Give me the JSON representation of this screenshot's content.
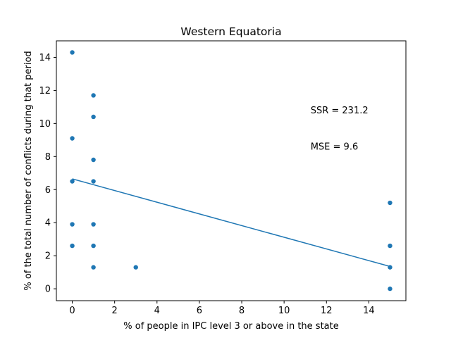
{
  "chart_data": {
    "type": "scatter",
    "title": "Western Equatoria",
    "xlabel": "% of people in IPC level 3 or above in the state",
    "ylabel": "% of the total number of conflicts during that period",
    "xlim": [
      -0.75,
      15.75
    ],
    "ylim": [
      -0.72,
      15.0
    ],
    "xticks": [
      0,
      2,
      4,
      6,
      8,
      10,
      12,
      14
    ],
    "yticks": [
      0,
      2,
      4,
      6,
      8,
      10,
      12,
      14
    ],
    "grid": false,
    "color": "#1f77b4",
    "points": [
      {
        "x": 0,
        "y": 14.3
      },
      {
        "x": 0,
        "y": 9.1
      },
      {
        "x": 0,
        "y": 6.5
      },
      {
        "x": 0,
        "y": 3.9
      },
      {
        "x": 0,
        "y": 2.6
      },
      {
        "x": 1,
        "y": 11.7
      },
      {
        "x": 1,
        "y": 10.4
      },
      {
        "x": 1,
        "y": 7.8
      },
      {
        "x": 1,
        "y": 6.5
      },
      {
        "x": 1,
        "y": 3.9
      },
      {
        "x": 1,
        "y": 2.6
      },
      {
        "x": 1,
        "y": 1.3
      },
      {
        "x": 3,
        "y": 1.3
      },
      {
        "x": 15,
        "y": 5.2
      },
      {
        "x": 15,
        "y": 2.6
      },
      {
        "x": 15,
        "y": 1.3
      },
      {
        "x": 15,
        "y": 0.0
      }
    ],
    "fit_line": {
      "x": [
        0,
        15
      ],
      "y": [
        6.65,
        1.35
      ]
    },
    "annotations": [
      {
        "text": "SSR = 231.2",
        "x": 11.25,
        "y": 10.8
      },
      {
        "text": "MSE = 9.6",
        "x": 11.25,
        "y": 8.6
      }
    ]
  }
}
